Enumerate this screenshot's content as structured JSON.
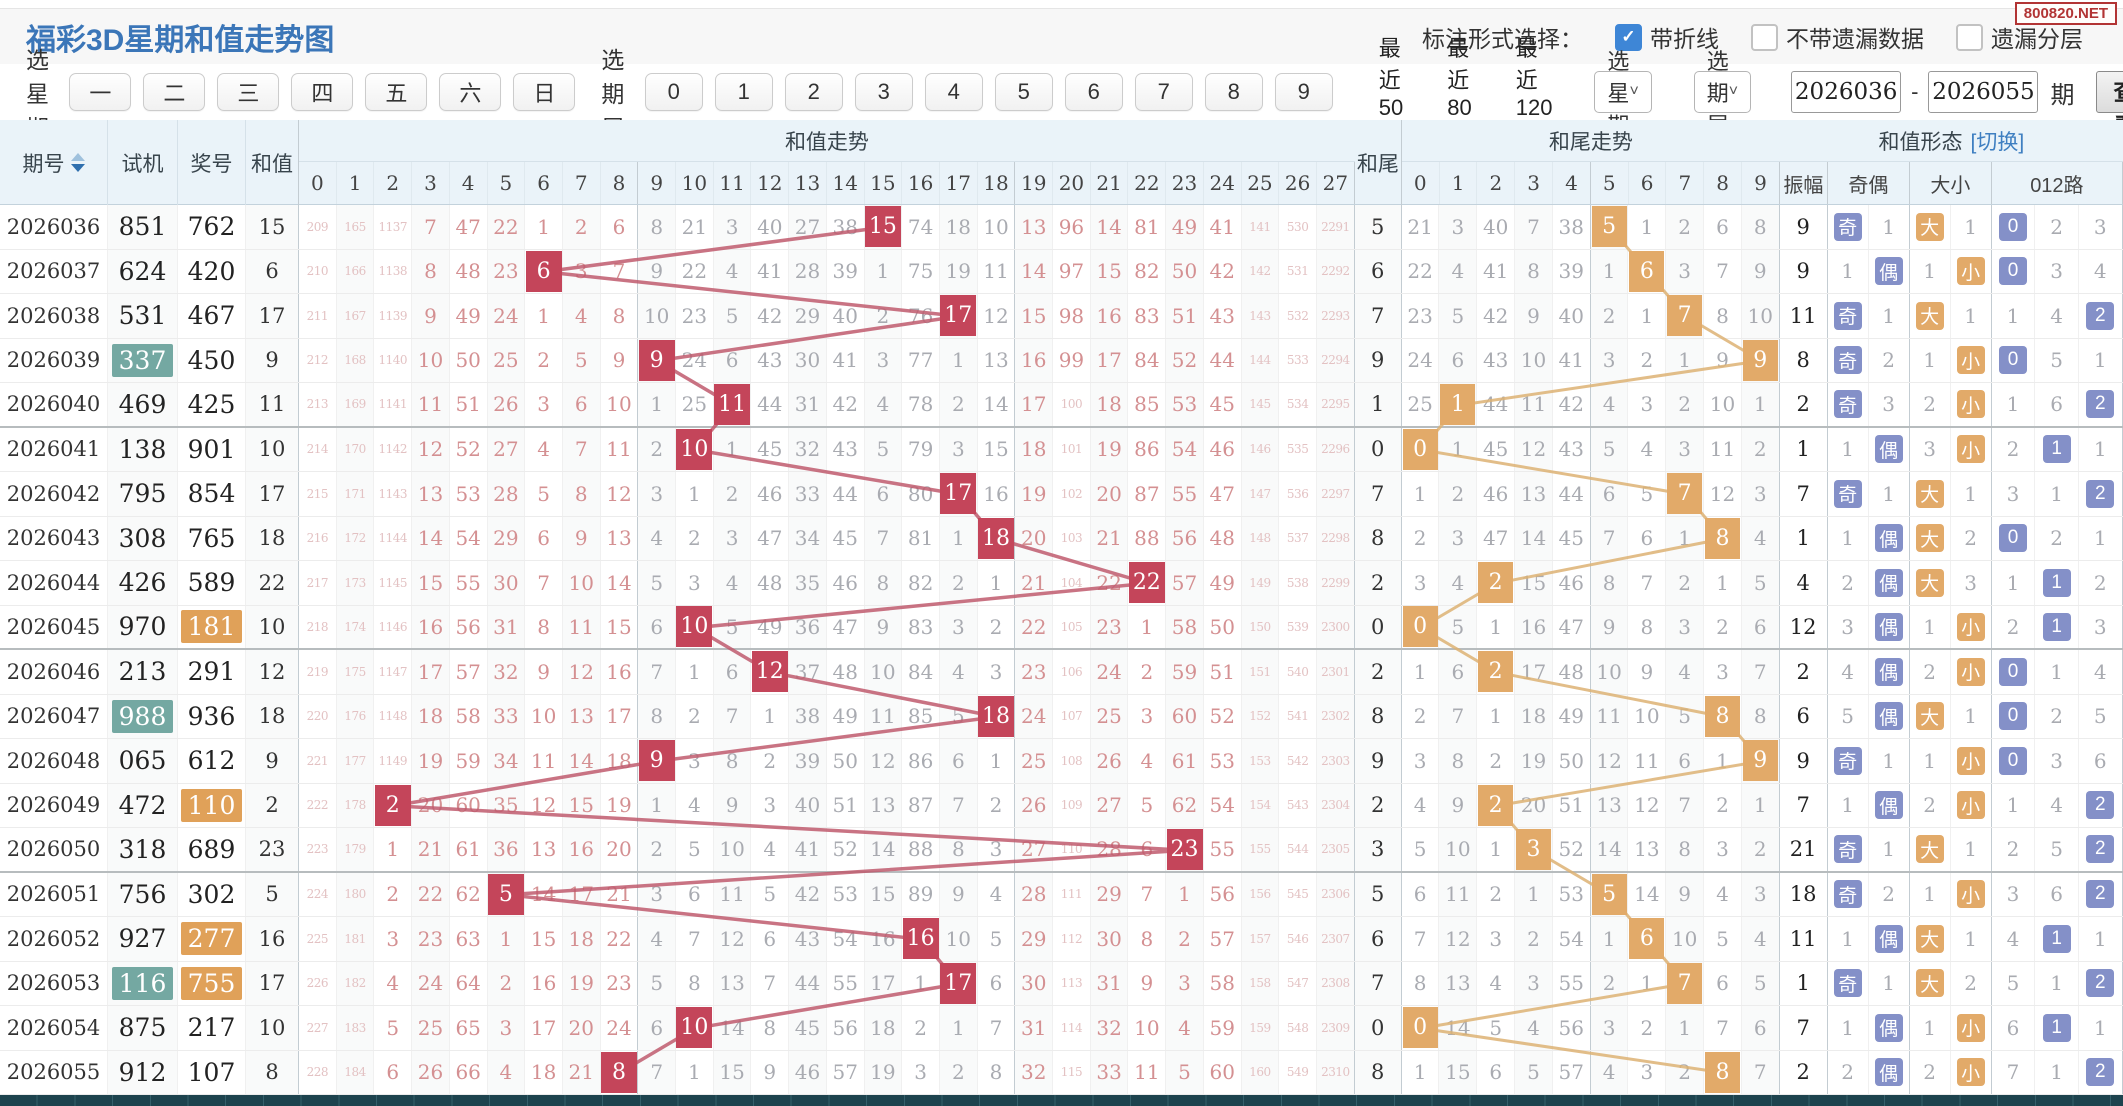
{
  "header": {
    "title": "福彩3D星期和值走势图",
    "watermark": "800820.NET",
    "annotation_label": "标注形式选择：",
    "checkboxes": [
      {
        "label": "带折线",
        "checked": true
      },
      {
        "label": "不带遗漏数据",
        "checked": false
      },
      {
        "label": "遗漏分层",
        "checked": false
      }
    ]
  },
  "filters": {
    "week_label": "选星期:",
    "week_buttons": [
      "一",
      "二",
      "三",
      "四",
      "五",
      "六",
      "日"
    ],
    "tail_label": "选期尾:",
    "tail_buttons": [
      "0",
      "1",
      "2",
      "3",
      "4",
      "5",
      "6",
      "7",
      "8",
      "9"
    ],
    "quick_links": [
      "最近50期",
      "最近80期",
      "最近120期"
    ],
    "week_select": "选星期",
    "tail_select": "选期尾",
    "range_start": "2026036",
    "range_end": "2026055",
    "range_dash": "-",
    "range_suffix": "期",
    "submit_label": "查看"
  },
  "table": {
    "col_issue": "期号",
    "col_shiji": "试机",
    "col_prize": "奖号",
    "col_sum": "和值",
    "grp_sum_trend": "和值走势",
    "col_tail": "和尾",
    "grp_tail_trend": "和尾走势",
    "grp_form": "和值形态",
    "grp_form_link": "[切换]",
    "sum_headers": [
      "0",
      "1",
      "2",
      "3",
      "4",
      "5",
      "6",
      "7",
      "8",
      "9",
      "10",
      "11",
      "12",
      "13",
      "14",
      "15",
      "16",
      "17",
      "18",
      "19",
      "20",
      "21",
      "22",
      "23",
      "24",
      "25",
      "26",
      "27"
    ],
    "tail_headers": [
      "0",
      "1",
      "2",
      "3",
      "4",
      "5",
      "6",
      "7",
      "8",
      "9"
    ],
    "form_headers": [
      "振幅",
      "奇偶",
      "大小",
      "012路"
    ]
  },
  "rows": [
    {
      "issue": "2026036",
      "shiji": "851",
      "prize": "762",
      "sum": 15,
      "sm": [
        209,
        165,
        1137,
        7,
        47,
        22,
        1,
        2,
        6,
        8,
        21,
        3,
        40,
        27,
        38,
        15,
        74,
        18,
        10,
        13,
        96,
        14,
        81,
        49,
        41,
        141,
        530,
        2291
      ],
      "tail": 5,
      "tm": [
        21,
        3,
        40,
        7,
        38,
        5,
        1,
        2,
        6,
        8
      ],
      "amp": 9,
      "oe": [
        "奇",
        1
      ],
      "bs": [
        "大",
        1
      ],
      "lu": [
        0,
        2,
        3
      ]
    },
    {
      "issue": "2026037",
      "shiji": "624",
      "prize": "420",
      "sum": 6,
      "sm": [
        210,
        166,
        1138,
        8,
        48,
        23,
        6,
        3,
        7,
        9,
        22,
        4,
        41,
        28,
        39,
        1,
        75,
        19,
        11,
        14,
        97,
        15,
        82,
        50,
        42,
        142,
        531,
        2292
      ],
      "tail": 6,
      "tm": [
        22,
        4,
        41,
        8,
        39,
        1,
        6,
        3,
        7,
        9
      ],
      "amp": 9,
      "oe": [
        "偶",
        1
      ],
      "bs": [
        "小",
        1
      ],
      "lu": [
        0,
        3,
        4
      ]
    },
    {
      "issue": "2026038",
      "shiji": "531",
      "prize": "467",
      "sum": 17,
      "sm": [
        211,
        167,
        1139,
        9,
        49,
        24,
        1,
        4,
        8,
        10,
        23,
        5,
        42,
        29,
        40,
        2,
        76,
        17,
        12,
        15,
        98,
        16,
        83,
        51,
        43,
        143,
        532,
        2293
      ],
      "tail": 7,
      "tm": [
        23,
        5,
        42,
        9,
        40,
        2,
        1,
        7,
        8,
        10
      ],
      "amp": 11,
      "oe": [
        "奇",
        1
      ],
      "bs": [
        "大",
        1
      ],
      "lu": [
        2,
        1,
        4
      ]
    },
    {
      "issue": "2026039",
      "shiji": "337",
      "shl": true,
      "prize": "450",
      "sum": 9,
      "sm": [
        212,
        168,
        1140,
        10,
        50,
        25,
        2,
        5,
        9,
        9,
        24,
        6,
        43,
        30,
        41,
        3,
        77,
        1,
        13,
        16,
        99,
        17,
        84,
        52,
        44,
        144,
        533,
        2294
      ],
      "tail": 9,
      "tm": [
        24,
        6,
        43,
        10,
        41,
        3,
        2,
        1,
        9,
        9
      ],
      "amp": 8,
      "oe": [
        "奇",
        2
      ],
      "bs": [
        "小",
        1
      ],
      "lu": [
        0,
        5,
        1
      ]
    },
    {
      "issue": "2026040",
      "shiji": "469",
      "prize": "425",
      "sum": 11,
      "sm": [
        213,
        169,
        1141,
        11,
        51,
        26,
        3,
        6,
        10,
        1,
        25,
        11,
        44,
        31,
        42,
        4,
        78,
        2,
        14,
        17,
        100,
        18,
        85,
        53,
        45,
        145,
        534,
        2295
      ],
      "tail": 1,
      "tm": [
        25,
        1,
        44,
        11,
        42,
        4,
        3,
        2,
        10,
        1
      ],
      "amp": 2,
      "oe": [
        "奇",
        3
      ],
      "bs": [
        "小",
        2
      ],
      "lu": [
        2,
        1,
        6
      ]
    },
    {
      "issue": "2026041",
      "shiji": "138",
      "prize": "901",
      "sum": 10,
      "sm": [
        214,
        170,
        1142,
        12,
        52,
        27,
        4,
        7,
        11,
        2,
        10,
        1,
        45,
        32,
        43,
        5,
        79,
        3,
        15,
        18,
        101,
        19,
        86,
        54,
        46,
        146,
        535,
        2296
      ],
      "tail": 0,
      "tm": [
        0,
        1,
        45,
        12,
        43,
        5,
        4,
        3,
        11,
        2
      ],
      "amp": 1,
      "oe": [
        "偶",
        1
      ],
      "bs": [
        "小",
        3
      ],
      "lu": [
        1,
        2,
        1
      ]
    },
    {
      "issue": "2026042",
      "shiji": "795",
      "prize": "854",
      "sum": 17,
      "sm": [
        215,
        171,
        1143,
        13,
        53,
        28,
        5,
        8,
        12,
        3,
        1,
        2,
        46,
        33,
        44,
        6,
        80,
        17,
        16,
        19,
        102,
        20,
        87,
        55,
        47,
        147,
        536,
        2297
      ],
      "tail": 7,
      "tm": [
        1,
        2,
        46,
        13,
        44,
        6,
        5,
        7,
        12,
        3
      ],
      "amp": 7,
      "oe": [
        "奇",
        1
      ],
      "bs": [
        "大",
        1
      ],
      "lu": [
        2,
        3,
        1
      ]
    },
    {
      "issue": "2026043",
      "shiji": "308",
      "prize": "765",
      "sum": 18,
      "sm": [
        216,
        172,
        1144,
        14,
        54,
        29,
        6,
        9,
        13,
        4,
        2,
        3,
        47,
        34,
        45,
        7,
        81,
        1,
        18,
        20,
        103,
        21,
        88,
        56,
        48,
        148,
        537,
        2298
      ],
      "tail": 8,
      "tm": [
        2,
        3,
        47,
        14,
        45,
        7,
        6,
        1,
        8,
        4
      ],
      "amp": 1,
      "oe": [
        "偶",
        1
      ],
      "bs": [
        "大",
        2
      ],
      "lu": [
        0,
        2,
        1
      ]
    },
    {
      "issue": "2026044",
      "shiji": "426",
      "prize": "589",
      "sum": 22,
      "sm": [
        217,
        173,
        1145,
        15,
        55,
        30,
        7,
        10,
        14,
        5,
        3,
        4,
        48,
        35,
        46,
        8,
        82,
        2,
        1,
        21,
        104,
        22,
        22,
        57,
        49,
        149,
        538,
        2299
      ],
      "tail": 2,
      "tm": [
        3,
        4,
        2,
        15,
        46,
        8,
        7,
        2,
        1,
        5
      ],
      "amp": 4,
      "oe": [
        "偶",
        2
      ],
      "bs": [
        "大",
        3
      ],
      "lu": [
        1,
        1,
        2
      ]
    },
    {
      "issue": "2026045",
      "shiji": "970",
      "prize": "181",
      "phl": true,
      "sum": 10,
      "sm": [
        218,
        174,
        1146,
        16,
        56,
        31,
        8,
        11,
        15,
        6,
        10,
        5,
        49,
        36,
        47,
        9,
        83,
        3,
        2,
        22,
        105,
        23,
        1,
        58,
        50,
        150,
        539,
        2300
      ],
      "tail": 0,
      "tm": [
        0,
        5,
        1,
        16,
        47,
        9,
        8,
        3,
        2,
        6
      ],
      "amp": 12,
      "oe": [
        "偶",
        3
      ],
      "bs": [
        "小",
        1
      ],
      "lu": [
        1,
        2,
        3
      ]
    },
    {
      "issue": "2026046",
      "shiji": "213",
      "prize": "291",
      "sum": 12,
      "sm": [
        219,
        175,
        1147,
        17,
        57,
        32,
        9,
        12,
        16,
        7,
        1,
        6,
        12,
        37,
        48,
        10,
        84,
        4,
        3,
        23,
        106,
        24,
        2,
        59,
        51,
        151,
        540,
        2301
      ],
      "tail": 2,
      "tm": [
        1,
        6,
        2,
        17,
        48,
        10,
        9,
        4,
        3,
        7
      ],
      "amp": 2,
      "oe": [
        "偶",
        4
      ],
      "bs": [
        "小",
        2
      ],
      "lu": [
        0,
        1,
        4
      ]
    },
    {
      "issue": "2026047",
      "shiji": "988",
      "shl": true,
      "prize": "936",
      "sum": 18,
      "sm": [
        220,
        176,
        1148,
        18,
        58,
        33,
        10,
        13,
        17,
        8,
        2,
        7,
        1,
        38,
        49,
        11,
        85,
        5,
        18,
        24,
        107,
        25,
        3,
        60,
        52,
        152,
        541,
        2302
      ],
      "tail": 8,
      "tm": [
        2,
        7,
        1,
        18,
        49,
        11,
        10,
        5,
        8,
        8
      ],
      "amp": 6,
      "oe": [
        "偶",
        5
      ],
      "bs": [
        "大",
        1
      ],
      "lu": [
        0,
        2,
        5
      ]
    },
    {
      "issue": "2026048",
      "shiji": "065",
      "prize": "612",
      "sum": 9,
      "sm": [
        221,
        177,
        1149,
        19,
        59,
        34,
        11,
        14,
        18,
        9,
        3,
        8,
        2,
        39,
        50,
        12,
        86,
        6,
        1,
        25,
        108,
        26,
        4,
        61,
        53,
        153,
        542,
        2303
      ],
      "tail": 9,
      "tm": [
        3,
        8,
        2,
        19,
        50,
        12,
        11,
        6,
        1,
        9
      ],
      "amp": 9,
      "oe": [
        "奇",
        1
      ],
      "bs": [
        "小",
        1
      ],
      "lu": [
        0,
        3,
        6
      ]
    },
    {
      "issue": "2026049",
      "shiji": "472",
      "prize": "110",
      "phl": true,
      "sum": 2,
      "sm": [
        222,
        178,
        2,
        20,
        60,
        35,
        12,
        15,
        19,
        1,
        4,
        9,
        3,
        40,
        51,
        13,
        87,
        7,
        2,
        26,
        109,
        27,
        5,
        62,
        54,
        154,
        543,
        2304
      ],
      "tail": 2,
      "tm": [
        4,
        9,
        2,
        20,
        51,
        13,
        12,
        7,
        2,
        1
      ],
      "amp": 7,
      "oe": [
        "偶",
        1
      ],
      "bs": [
        "小",
        2
      ],
      "lu": [
        2,
        1,
        4
      ]
    },
    {
      "issue": "2026050",
      "shiji": "318",
      "prize": "689",
      "sum": 23,
      "sm": [
        223,
        179,
        1,
        21,
        61,
        36,
        13,
        16,
        20,
        2,
        5,
        10,
        4,
        41,
        52,
        14,
        88,
        8,
        3,
        27,
        110,
        28,
        6,
        23,
        55,
        155,
        544,
        2305
      ],
      "tail": 3,
      "tm": [
        5,
        10,
        1,
        3,
        52,
        14,
        13,
        8,
        3,
        2
      ],
      "amp": 21,
      "oe": [
        "奇",
        1
      ],
      "bs": [
        "大",
        1
      ],
      "lu": [
        2,
        2,
        5
      ]
    },
    {
      "issue": "2026051",
      "shiji": "756",
      "prize": "302",
      "sum": 5,
      "sm": [
        224,
        180,
        2,
        22,
        62,
        5,
        14,
        17,
        21,
        3,
        6,
        11,
        5,
        42,
        53,
        15,
        89,
        9,
        4,
        28,
        111,
        29,
        7,
        1,
        56,
        156,
        545,
        2306
      ],
      "tail": 5,
      "tm": [
        6,
        11,
        2,
        1,
        53,
        5,
        14,
        9,
        4,
        3
      ],
      "amp": 18,
      "oe": [
        "奇",
        2
      ],
      "bs": [
        "小",
        1
      ],
      "lu": [
        2,
        3,
        6
      ]
    },
    {
      "issue": "2026052",
      "shiji": "927",
      "prize": "277",
      "phl": true,
      "sum": 16,
      "sm": [
        225,
        181,
        3,
        23,
        63,
        1,
        15,
        18,
        22,
        4,
        7,
        12,
        6,
        43,
        54,
        16,
        16,
        10,
        5,
        29,
        112,
        30,
        8,
        2,
        57,
        157,
        546,
        2307
      ],
      "tail": 6,
      "tm": [
        7,
        12,
        3,
        2,
        54,
        1,
        6,
        10,
        5,
        4
      ],
      "amp": 11,
      "oe": [
        "偶",
        1
      ],
      "bs": [
        "大",
        1
      ],
      "lu": [
        1,
        4,
        1
      ]
    },
    {
      "issue": "2026053",
      "shiji": "116",
      "shl": true,
      "prize": "755",
      "phl": true,
      "sum": 17,
      "sm": [
        226,
        182,
        4,
        24,
        64,
        2,
        16,
        19,
        23,
        5,
        8,
        13,
        7,
        44,
        55,
        17,
        1,
        17,
        6,
        30,
        113,
        31,
        9,
        3,
        58,
        158,
        547,
        2308
      ],
      "tail": 7,
      "tm": [
        8,
        13,
        4,
        3,
        55,
        2,
        1,
        7,
        6,
        5
      ],
      "amp": 1,
      "oe": [
        "奇",
        1
      ],
      "bs": [
        "大",
        2
      ],
      "lu": [
        2,
        5,
        1
      ]
    },
    {
      "issue": "2026054",
      "shiji": "875",
      "prize": "217",
      "sum": 10,
      "sm": [
        227,
        183,
        5,
        25,
        65,
        3,
        17,
        20,
        24,
        6,
        10,
        14,
        8,
        45,
        56,
        18,
        2,
        1,
        7,
        31,
        114,
        32,
        10,
        4,
        59,
        159,
        548,
        2309
      ],
      "tail": 0,
      "tm": [
        0,
        14,
        5,
        4,
        56,
        3,
        2,
        1,
        7,
        6
      ],
      "amp": 7,
      "oe": [
        "偶",
        1
      ],
      "bs": [
        "小",
        1
      ],
      "lu": [
        1,
        6,
        1
      ]
    },
    {
      "issue": "2026055",
      "shiji": "912",
      "prize": "107",
      "sum": 8,
      "sm": [
        228,
        184,
        6,
        26,
        66,
        4,
        18,
        21,
        8,
        7,
        1,
        15,
        9,
        46,
        57,
        19,
        3,
        2,
        8,
        32,
        115,
        33,
        11,
        5,
        60,
        160,
        549,
        2310
      ],
      "tail": 8,
      "tm": [
        1,
        15,
        6,
        5,
        57,
        4,
        3,
        2,
        8,
        7
      ],
      "amp": 2,
      "oe": [
        "偶",
        2
      ],
      "bs": [
        "小",
        2
      ],
      "lu": [
        2,
        7,
        1
      ]
    }
  ],
  "colors": {
    "sum_hit": "#c4455a",
    "tail_hit": "#e2aa69",
    "badge_blue": "#8490c8",
    "badge_orange": "#e2aa69",
    "sum_line": "#c05b6d",
    "tail_line": "#ddb173",
    "title_blue": "#3b76b8"
  }
}
